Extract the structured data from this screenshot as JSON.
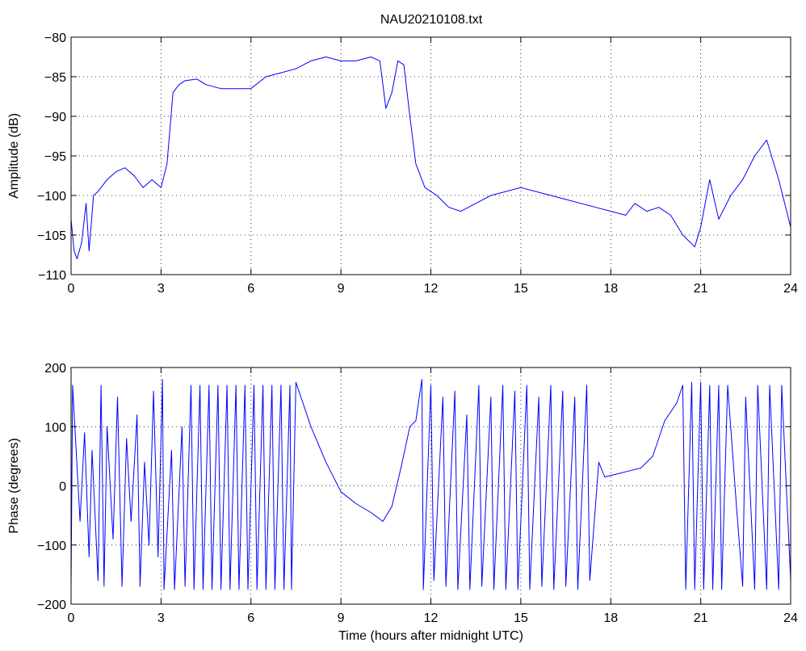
{
  "figure": {
    "title": "NAU20210108.txt"
  },
  "chart_data": [
    {
      "type": "line",
      "ylabel": "Amplitude (dB)",
      "xlabel": "",
      "xlim": [
        0,
        24
      ],
      "ylim": [
        -110,
        -80
      ],
      "xticks": [
        0,
        3,
        6,
        9,
        12,
        15,
        18,
        21,
        24
      ],
      "yticks": [
        -110,
        -105,
        -100,
        -95,
        -90,
        -85,
        -80
      ],
      "xtick_labels": [
        "0",
        "3",
        "6",
        "9",
        "12",
        "15",
        "18",
        "21",
        "24"
      ],
      "ytick_labels": [
        "−110",
        "−105",
        "−100",
        "−95",
        "−90",
        "−85",
        "−80"
      ],
      "grid": true,
      "color": "#0000ff",
      "series": [
        {
          "x": [
            0,
            0.1,
            0.2,
            0.35,
            0.5,
            0.6,
            0.75,
            0.9,
            1.2,
            1.5,
            1.8,
            2.1,
            2.4,
            2.7,
            3.0,
            3.2,
            3.4,
            3.6,
            3.8,
            4.2,
            4.5,
            5.0,
            5.5,
            6.0,
            6.5,
            7.0,
            7.5,
            8.0,
            8.5,
            9.0,
            9.5,
            10.0,
            10.3,
            10.5,
            10.7,
            10.9,
            11.1,
            11.3,
            11.5,
            11.8,
            12.2,
            12.6,
            13.0,
            13.5,
            14.0,
            14.5,
            15.0,
            15.5,
            16.0,
            16.5,
            17.0,
            17.5,
            18.0,
            18.5,
            18.8,
            19.2,
            19.6,
            20.0,
            20.4,
            20.8,
            21.0,
            21.3,
            21.6,
            22.0,
            22.4,
            22.8,
            23.2,
            23.6,
            24.0
          ],
          "values": [
            -103,
            -107,
            -108,
            -106,
            -101,
            -107,
            -100,
            -99.5,
            -98,
            -97,
            -96.5,
            -97.5,
            -99,
            -98,
            -99,
            -96,
            -87,
            -86,
            -85.5,
            -85.3,
            -86,
            -86.5,
            -86.5,
            -86.5,
            -85,
            -84.5,
            -84,
            -83,
            -82.5,
            -83,
            -83,
            -82.5,
            -83,
            -89,
            -87,
            -83,
            -83.5,
            -90,
            -96,
            -99,
            -100,
            -101.5,
            -102,
            -101,
            -100,
            -99.5,
            -99,
            -99.5,
            -100,
            -100.5,
            -101,
            -101.5,
            -102,
            -102.5,
            -101,
            -102,
            -101.5,
            -102.5,
            -105,
            -106.5,
            -104,
            -98,
            -103,
            -100,
            -98,
            -95,
            -93,
            -98,
            -104
          ]
        }
      ]
    },
    {
      "type": "line",
      "ylabel": "Phase (degrees)",
      "xlabel": "Time (hours after midnight UTC)",
      "xlim": [
        0,
        24
      ],
      "ylim": [
        -200,
        200
      ],
      "xticks": [
        0,
        3,
        6,
        9,
        12,
        15,
        18,
        21,
        24
      ],
      "yticks": [
        -200,
        -100,
        0,
        100,
        200
      ],
      "xtick_labels": [
        "0",
        "3",
        "6",
        "9",
        "12",
        "15",
        "18",
        "21",
        "24"
      ],
      "ytick_labels": [
        "−200",
        "−100",
        "0",
        "100",
        "200"
      ],
      "grid": true,
      "color": "#0000ff",
      "series": [
        {
          "x": [
            0,
            0.05,
            0.3,
            0.45,
            0.6,
            0.7,
            0.9,
            1.0,
            1.1,
            1.2,
            1.4,
            1.55,
            1.7,
            1.85,
            2.0,
            2.2,
            2.3,
            2.45,
            2.6,
            2.75,
            2.9,
            3.05,
            3.1,
            3.35,
            3.45,
            3.7,
            3.8,
            4.0,
            4.1,
            4.3,
            4.4,
            4.6,
            4.7,
            4.9,
            5.0,
            5.2,
            5.3,
            5.5,
            5.6,
            5.8,
            5.9,
            6.1,
            6.2,
            6.4,
            6.5,
            6.7,
            6.8,
            7.0,
            7.1,
            7.3,
            7.35,
            7.5,
            8.0,
            8.5,
            9.0,
            9.5,
            10.0,
            10.4,
            10.7,
            11.0,
            11.3,
            11.5,
            11.7,
            11.75,
            12.0,
            12.1,
            12.4,
            12.5,
            12.8,
            12.9,
            13.2,
            13.3,
            13.6,
            13.7,
            14.0,
            14.1,
            14.4,
            14.5,
            14.8,
            14.9,
            15.2,
            15.3,
            15.6,
            15.7,
            16.0,
            16.1,
            16.4,
            16.5,
            16.8,
            16.9,
            17.2,
            17.3,
            17.6,
            17.8,
            18.2,
            18.6,
            19.0,
            19.4,
            19.8,
            20.2,
            20.4,
            20.5,
            20.7,
            20.8,
            21.0,
            21.1,
            21.3,
            21.4,
            21.6,
            21.7,
            21.9,
            22.2,
            22.4,
            22.5,
            22.8,
            22.9,
            23.2,
            23.3,
            23.6,
            23.7,
            24.0
          ],
          "values": [
            -170,
            170,
            -60,
            90,
            -120,
            60,
            -160,
            170,
            -170,
            100,
            -90,
            150,
            -170,
            80,
            -60,
            120,
            -170,
            40,
            -100,
            160,
            -120,
            180,
            -175,
            60,
            -175,
            100,
            -170,
            170,
            -175,
            170,
            -175,
            170,
            -175,
            170,
            -175,
            170,
            -175,
            170,
            -175,
            170,
            -175,
            170,
            -175,
            170,
            -175,
            170,
            -175,
            170,
            -175,
            170,
            -175,
            175,
            100,
            40,
            -10,
            -30,
            -45,
            -60,
            -35,
            30,
            100,
            110,
            180,
            -175,
            170,
            -160,
            150,
            -170,
            160,
            -175,
            120,
            -175,
            170,
            -170,
            150,
            -175,
            170,
            -175,
            160,
            -175,
            170,
            -175,
            150,
            -170,
            170,
            -175,
            160,
            -170,
            150,
            -175,
            170,
            -160,
            40,
            15,
            20,
            25,
            30,
            50,
            110,
            140,
            170,
            -175,
            175,
            -175,
            175,
            -175,
            170,
            -175,
            170,
            -175,
            170,
            -40,
            -170,
            150,
            -175,
            170,
            -175,
            170,
            -175,
            170,
            -160
          ]
        }
      ]
    }
  ]
}
